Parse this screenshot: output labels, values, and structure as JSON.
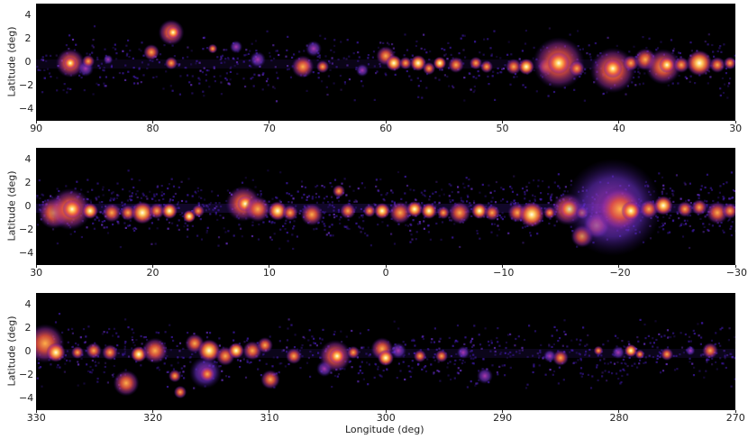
{
  "figure": {
    "xlabel": "Longitude (deg)",
    "ylabel": "Latitude (deg)",
    "y_ticks": [
      "4",
      "2",
      "0",
      "−2",
      "−4"
    ],
    "y_tick_values": [
      4,
      2,
      0,
      -2,
      -4
    ],
    "ylim": [
      -5,
      5
    ],
    "colormap": [
      "#000000",
      "#2a0a6e",
      "#5a2cc8",
      "#b4309a",
      "#f0603a",
      "#ffc050",
      "#ffffe0"
    ]
  },
  "panels": [
    {
      "name": "panel-1",
      "xlim": [
        90,
        30
      ],
      "x_ticks": [
        "90",
        "80",
        "70",
        "60",
        "50",
        "40",
        "30"
      ],
      "x_tick_values": [
        90,
        80,
        70,
        60,
        50,
        40,
        30
      ],
      "show_xlabel": false
    },
    {
      "name": "panel-2",
      "xlim": [
        30,
        -30
      ],
      "x_ticks": [
        "30",
        "20",
        "10",
        "0",
        "−10",
        "−20",
        "−30"
      ],
      "x_tick_values": [
        30,
        20,
        10,
        0,
        -10,
        -20,
        -30
      ],
      "show_xlabel": false
    },
    {
      "name": "panel-3",
      "xlim": [
        330,
        270
      ],
      "x_ticks": [
        "330",
        "320",
        "310",
        "300",
        "290",
        "280",
        "270"
      ],
      "x_tick_values": [
        330,
        320,
        310,
        300,
        290,
        280,
        270
      ],
      "show_xlabel": true
    }
  ]
}
